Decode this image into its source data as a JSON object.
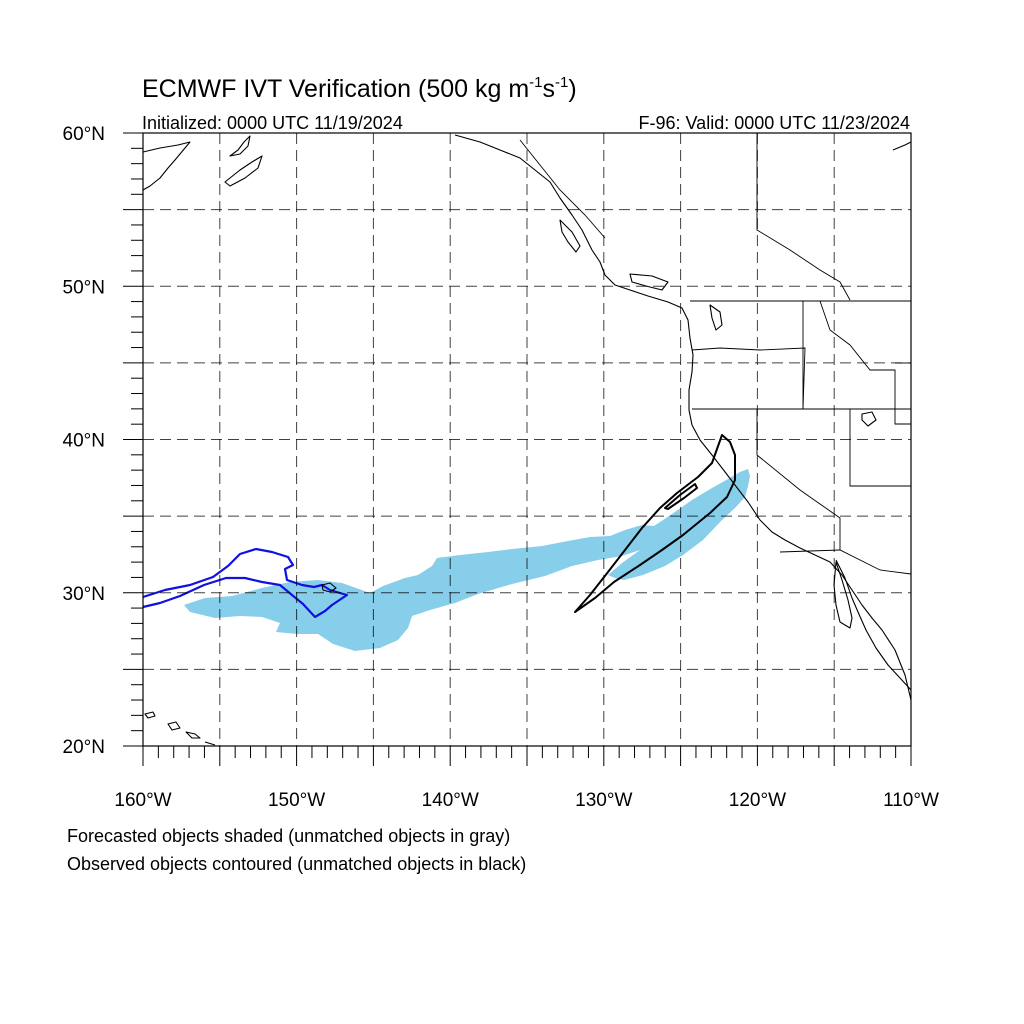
{
  "title": {
    "main": "ECMWF IVT Verification (500 kg m",
    "sup1": "-1",
    "mid": "s",
    "sup2": "-1",
    "end": ")",
    "initialized": "Initialized: 0000 UTC 11/19/2024",
    "valid": "F-96: Valid: 0000 UTC 11/23/2024"
  },
  "axes": {
    "lon_min": -160,
    "lon_max": -110,
    "lat_min": 20,
    "lat_max": 60,
    "x_ticks": [
      {
        "value": -160,
        "label": "160°W"
      },
      {
        "value": -150,
        "label": "150°W"
      },
      {
        "value": -140,
        "label": "140°W"
      },
      {
        "value": -130,
        "label": "130°W"
      },
      {
        "value": -120,
        "label": "120°W"
      },
      {
        "value": -110,
        "label": "110°W"
      }
    ],
    "y_ticks": [
      {
        "value": 20,
        "label": "20°N"
      },
      {
        "value": 30,
        "label": "30°N"
      },
      {
        "value": 40,
        "label": "40°N"
      },
      {
        "value": 50,
        "label": "50°N"
      },
      {
        "value": 60,
        "label": "60°N"
      }
    ],
    "grid_lon": [
      -155,
      -150,
      -145,
      -140,
      -135,
      -130,
      -125,
      -120,
      -115
    ],
    "grid_lat": [
      25,
      30,
      35,
      40,
      45,
      50,
      55
    ]
  },
  "legend": {
    "line1": "Forecasted objects shaded (unmatched objects in gray)",
    "line2": "Observed objects contoured (unmatched objects in black)"
  },
  "colors": {
    "forecast_matched": "#87ceeb",
    "observed_matched": "#1010e0",
    "observed_unmatched": "#000000"
  }
}
